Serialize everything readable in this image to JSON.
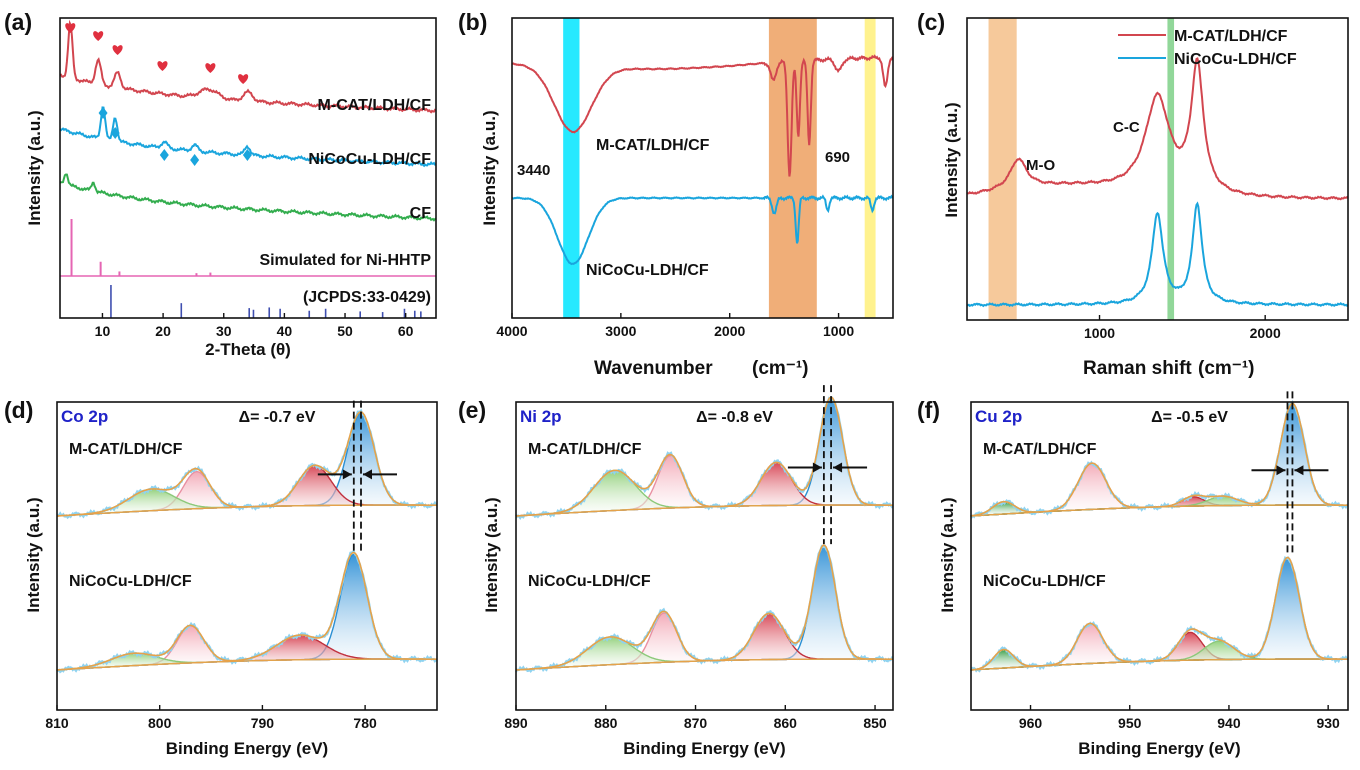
{
  "colors": {
    "red": "#d2464f",
    "blue": "#1aa5dd",
    "green": "#33ad4e",
    "pink": "#e565b3",
    "navy": "#3f4fb0",
    "heart": "#e0303f",
    "diamond": "#1aa5dd",
    "cyan_band": "#00e5ff",
    "orange_band": "#eda060",
    "yellow_band": "#fff07a",
    "raman_orange": "#f4c08a",
    "raman_green": "#7ed087",
    "xps_env": "#e6a24a",
    "xps_raw": "#8fd3f0",
    "xps_blue_fill": "#2d8fd6",
    "xps_red_fill": "#d6404f",
    "xps_pink_fill": "#f2a6b4",
    "xps_green_fill": "#8fcf78",
    "xps_dgreen_fill": "#2f9a3e",
    "elem_label": "#1f22c8"
  },
  "chart_data": [
    {
      "id": "a",
      "panel_label": "(a)",
      "type": "line",
      "xlabel": "2-Theta (θ)",
      "ylabel": "Intensity (a.u.)",
      "xlim": [
        3,
        65
      ],
      "xticks": [
        10,
        20,
        30,
        40,
        50,
        60
      ],
      "series": [
        {
          "name": "M-CAT/LDH/CF",
          "color": "red",
          "offset": 0.74,
          "peaks": [
            [
              4.7,
              0.18,
              0.35
            ],
            [
              9.3,
              0.08,
              0.45
            ],
            [
              12.5,
              0.05,
              0.5
            ],
            [
              27.5,
              0.03,
              1.5
            ],
            [
              34,
              0.03,
              0.8
            ]
          ]
        },
        {
          "name": "NiCoCu-LDH/CF",
          "color": "blue",
          "offset": 0.56,
          "peaks": [
            [
              10.1,
              0.11,
              0.35
            ],
            [
              12.1,
              0.08,
              0.35
            ],
            [
              20.2,
              0.02,
              0.5
            ],
            [
              25.2,
              0.02,
              0.5
            ],
            [
              33.9,
              0.03,
              0.45
            ]
          ]
        },
        {
          "name": "CF",
          "color": "green",
          "offset": 0.38,
          "peaks": [
            [
              4.0,
              0.04,
              0.3
            ],
            [
              8.5,
              0.03,
              0.3
            ]
          ]
        },
        {
          "name": "Simulated for Ni-HHTP",
          "color": "pink",
          "sticks": [
            [
              4.9,
              1.0
            ],
            [
              9.7,
              0.25
            ],
            [
              12.8,
              0.08
            ],
            [
              25.5,
              0.05
            ],
            [
              27.8,
              0.06
            ]
          ]
        },
        {
          "name": "(JCPDS:33-0429)",
          "color": "navy",
          "sticks": [
            [
              11.4,
              1.0
            ],
            [
              23.0,
              0.45
            ],
            [
              34.2,
              0.3
            ],
            [
              34.9,
              0.25
            ],
            [
              37.5,
              0.32
            ],
            [
              39.3,
              0.28
            ],
            [
              44.1,
              0.22
            ],
            [
              46.8,
              0.28
            ],
            [
              52.5,
              0.2
            ],
            [
              56.2,
              0.18
            ],
            [
              59.8,
              0.28
            ],
            [
              61.5,
              0.22
            ],
            [
              62.5,
              0.2
            ]
          ]
        }
      ],
      "markers": {
        "hearts": [
          4.7,
          9.3,
          12.5,
          19.9,
          27.8,
          33.2
        ],
        "diamonds": [
          10.1,
          12.1,
          20.2,
          25.2,
          33.9
        ]
      }
    },
    {
      "id": "b",
      "panel_label": "(b)",
      "type": "line",
      "xlabel": "Wavenumber",
      "xunit": "(cm⁻¹)",
      "ylabel": "Intensity (a.u.)",
      "xlim": [
        4000,
        500
      ],
      "xticks": [
        4000,
        3000,
        2000,
        1000
      ],
      "bands": [
        [
          3530,
          3380,
          "cyan_band"
        ],
        [
          1640,
          1200,
          "orange_band"
        ],
        [
          760,
          660,
          "yellow_band"
        ]
      ],
      "annotations": [
        "3440",
        "690"
      ],
      "series": [
        {
          "name": "M-CAT/LDH/CF",
          "color": "red",
          "offset": 0.85,
          "dips": [
            [
              3440,
              0.22,
              170
            ],
            [
              1600,
              0.06,
              25
            ],
            [
              1450,
              0.38,
              18
            ],
            [
              1370,
              0.25,
              15
            ],
            [
              1270,
              0.28,
              15
            ],
            [
              1000,
              0.04,
              30
            ],
            [
              570,
              0.1,
              20
            ]
          ]
        },
        {
          "name": "NiCoCu-LDH/CF",
          "color": "blue",
          "offset": 0.4,
          "dips": [
            [
              3440,
              0.22,
              140
            ],
            [
              1590,
              0.05,
              20
            ],
            [
              1380,
              0.15,
              14
            ],
            [
              1100,
              0.04,
              14
            ],
            [
              690,
              0.04,
              15
            ]
          ]
        }
      ]
    },
    {
      "id": "c",
      "panel_label": "(c)",
      "type": "line",
      "xlabel": "Raman shift",
      "xunit": "(cm⁻¹)",
      "ylabel": "Intensity (a.u.)",
      "xlim": [
        200,
        2500
      ],
      "xticks": [
        1000,
        2000
      ],
      "bands": [
        [
          330,
          500,
          "raman_orange"
        ],
        [
          1410,
          1450,
          "raman_green"
        ]
      ],
      "annotations": [
        "M-O",
        "C-C"
      ],
      "legend": "top-right",
      "series": [
        {
          "name": "M-CAT/LDH/CF",
          "color": "red",
          "offset": 0.42,
          "peaks": [
            [
              510,
              0.1,
              60
            ],
            [
              1350,
              0.32,
              90
            ],
            [
              1590,
              0.42,
              45
            ]
          ]
        },
        {
          "name": "NiCoCu-LDH/CF",
          "color": "blue",
          "offset": 0.05,
          "peaks": [
            [
              1350,
              0.3,
              40
            ],
            [
              1590,
              0.33,
              35
            ]
          ]
        }
      ]
    },
    {
      "id": "d",
      "panel_label": "(d)",
      "element": "Co 2p",
      "delta": "Δ= -0.7 eV",
      "type": "line",
      "xlabel": "Binding Energy (eV)",
      "ylabel": "Intensity (a.u.)",
      "xlim": [
        810,
        773
      ],
      "xticks": [
        810,
        800,
        790,
        780
      ],
      "samples": [
        "M-CAT/LDH/CF",
        "NiCoCu-LDH/CF"
      ],
      "peaks_top": [
        [
          780.4,
          0.3,
          1.3,
          "blue"
        ],
        [
          784.9,
          0.13,
          1.6,
          "red"
        ],
        [
          796.4,
          0.12,
          1.3,
          "pink"
        ],
        [
          800.8,
          0.07,
          2.2,
          "green"
        ]
      ],
      "peaks_bottom": [
        [
          781.1,
          0.34,
          1.3,
          "blue"
        ],
        [
          786.3,
          0.08,
          2.3,
          "red"
        ],
        [
          797.0,
          0.12,
          1.3,
          "pink"
        ],
        [
          802.5,
          0.04,
          2.2,
          "green"
        ]
      ],
      "ref_lines": [
        781.1,
        780.4
      ]
    },
    {
      "id": "e",
      "panel_label": "(e)",
      "element": "Ni 2p",
      "delta": "Δ= -0.8 eV",
      "type": "line",
      "xlabel": "Binding Energy (eV)",
      "ylabel": "Intensity (a.u.)",
      "xlim": [
        890,
        848
      ],
      "xticks": [
        890,
        880,
        870,
        860,
        850
      ],
      "samples": [
        "M-CAT/LDH/CF",
        "NiCoCu-LDH/CF"
      ],
      "peaks_top": [
        [
          854.9,
          0.35,
          1.3,
          "blue"
        ],
        [
          861.0,
          0.14,
          1.7,
          "red"
        ],
        [
          872.8,
          0.17,
          1.4,
          "pink"
        ],
        [
          879.0,
          0.13,
          2.3,
          "green"
        ]
      ],
      "peaks_bottom": [
        [
          855.7,
          0.37,
          1.3,
          "blue"
        ],
        [
          861.8,
          0.15,
          1.7,
          "red"
        ],
        [
          873.5,
          0.16,
          1.4,
          "pink"
        ],
        [
          879.5,
          0.09,
          2.5,
          "green"
        ]
      ],
      "ref_lines": [
        855.7,
        854.9
      ]
    },
    {
      "id": "f",
      "panel_label": "(f)",
      "element": "Cu 2p",
      "delta": "Δ= -0.5 eV",
      "type": "line",
      "xlabel": "Binding Energy (eV)",
      "ylabel": "Intensity (a.u.)",
      "xlim": [
        966,
        928
      ],
      "xticks": [
        960,
        950,
        940,
        930
      ],
      "samples": [
        "M-CAT/LDH/CF",
        "NiCoCu-LDH/CF"
      ],
      "peaks_top": [
        [
          933.6,
          0.33,
          1.2,
          "blue"
        ],
        [
          943.6,
          0.03,
          1.1,
          "red"
        ],
        [
          940.6,
          0.03,
          1.5,
          "green"
        ],
        [
          953.8,
          0.15,
          1.4,
          "pink"
        ],
        [
          962.7,
          0.04,
          1.1,
          "dgreen"
        ]
      ],
      "peaks_bottom": [
        [
          934.1,
          0.33,
          1.2,
          "blue"
        ],
        [
          943.9,
          0.09,
          1.2,
          "red"
        ],
        [
          941.0,
          0.06,
          1.5,
          "green"
        ],
        [
          954.0,
          0.13,
          1.3,
          "pink"
        ],
        [
          962.7,
          0.06,
          1.0,
          "dgreen"
        ]
      ],
      "ref_lines": [
        934.1,
        933.6
      ]
    }
  ]
}
